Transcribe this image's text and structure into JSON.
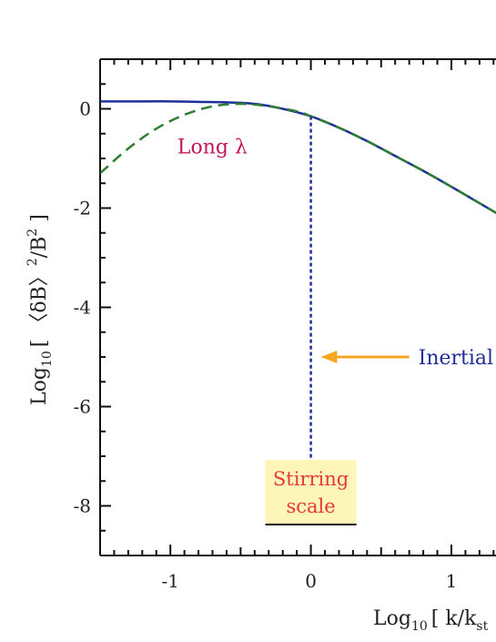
{
  "chart_data": {
    "type": "line",
    "xlabel": {
      "prefix": "Log",
      "sub": "10",
      "body": "[ k/k",
      "tail": "st"
    },
    "ylabel": {
      "prefix": "Log",
      "sub": "10",
      "body": "[ 〈δB〉",
      "sup1": "2",
      "mid": "/B",
      "sup2": "2",
      "end": " ]"
    },
    "xlim": [
      -1.5,
      1.35
    ],
    "ylim": [
      -9,
      1
    ],
    "x_ticks": [
      -1,
      0,
      1
    ],
    "x_tick_labels": [
      "-1",
      "0",
      "1"
    ],
    "y_ticks": [
      0,
      -2,
      -4,
      -6,
      -8
    ],
    "y_tick_labels": [
      "0",
      "-2",
      "-4",
      "-6",
      "-8"
    ],
    "grid": false,
    "series": [
      {
        "color": "#1f2f99",
        "style": "solid",
        "x": [
          -1.5,
          -1.2,
          -1.0,
          -0.8,
          -0.6,
          -0.4,
          -0.2,
          0.0,
          0.2,
          0.4,
          0.6,
          0.8,
          1.0,
          1.2,
          1.35
        ],
        "y": [
          0.15,
          0.15,
          0.15,
          0.14,
          0.13,
          0.1,
          0.0,
          -0.15,
          -0.38,
          -0.65,
          -0.95,
          -1.25,
          -1.57,
          -1.9,
          -2.15
        ]
      },
      {
        "color": "#2e7d32",
        "style": "dashed",
        "x": [
          -1.5,
          -1.3,
          -1.1,
          -0.9,
          -0.7,
          -0.5,
          -0.3,
          -0.1,
          0.0,
          0.2,
          0.4,
          0.6,
          0.8,
          1.0,
          1.2,
          1.35
        ],
        "y": [
          -1.3,
          -0.8,
          -0.4,
          -0.12,
          0.05,
          0.1,
          0.05,
          -0.05,
          -0.15,
          -0.38,
          -0.65,
          -0.95,
          -1.25,
          -1.57,
          -1.9,
          -2.15
        ]
      }
    ],
    "annotations": {
      "long_lambda": {
        "text": "Long λ",
        "color": "#c2185b",
        "x": -0.95,
        "y": -0.9
      },
      "stirring_vline": {
        "x": 0.0,
        "y_top": -0.15,
        "y_bottom": -7.1,
        "color": "#1f2f99"
      },
      "stirring_label": {
        "line1": "Stirring",
        "line2": "scale",
        "color": "#e53935",
        "box_color": "#fdf6b8"
      },
      "inertial_arrow": {
        "text": "Inertial r",
        "color": "#1f2f99",
        "arrow_color": "#f5a623",
        "y": -5.0,
        "x_from": 0.7,
        "x_to": 0.07
      }
    }
  }
}
